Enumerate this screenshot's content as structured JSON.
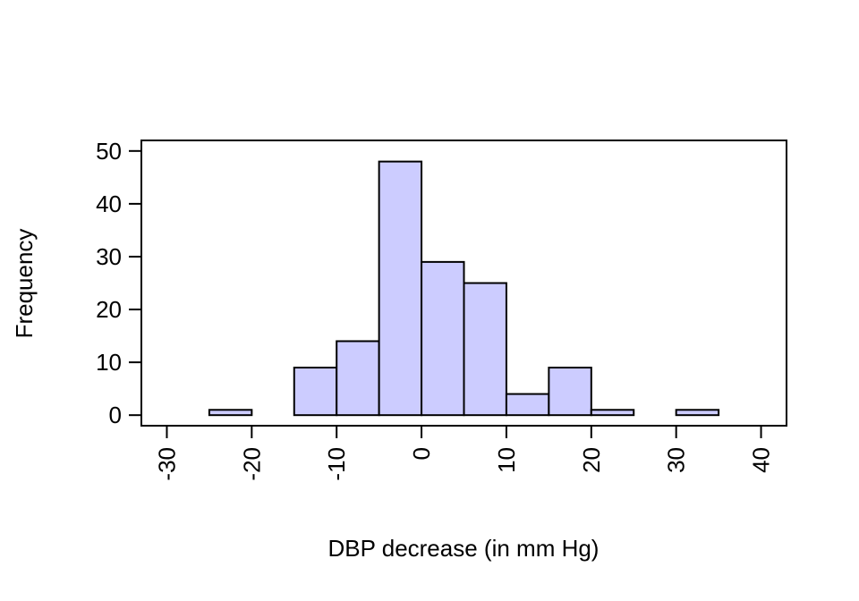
{
  "chart_data": {
    "type": "bar",
    "subtype": "histogram",
    "title": "",
    "xlabel": "DBP decrease (in mm Hg)",
    "ylabel": "Frequency",
    "bins": [
      {
        "from": -25,
        "to": -20,
        "count": 1
      },
      {
        "from": -20,
        "to": -15,
        "count": 0
      },
      {
        "from": -15,
        "to": -10,
        "count": 9
      },
      {
        "from": -10,
        "to": -5,
        "count": 14
      },
      {
        "from": -5,
        "to": 0,
        "count": 48
      },
      {
        "from": 0,
        "to": 5,
        "count": 29
      },
      {
        "from": 5,
        "to": 10,
        "count": 25
      },
      {
        "from": 10,
        "to": 15,
        "count": 4
      },
      {
        "from": 15,
        "to": 20,
        "count": 9
      },
      {
        "from": 20,
        "to": 25,
        "count": 1
      },
      {
        "from": 25,
        "to": 30,
        "count": 0
      },
      {
        "from": 30,
        "to": 35,
        "count": 1
      }
    ],
    "xlim": [
      -33,
      43
    ],
    "ylim": [
      -2,
      52
    ],
    "xticks": [
      -30,
      -20,
      -10,
      0,
      10,
      20,
      30,
      40
    ],
    "xtick_labels": [
      "-30",
      "-20",
      "-10",
      "0",
      "10",
      "20",
      "30",
      "40"
    ],
    "yticks": [
      0,
      10,
      20,
      30,
      40,
      50
    ],
    "ytick_labels": [
      "0",
      "10",
      "20",
      "30",
      "40",
      "50"
    ],
    "bar_color": "#ccccff",
    "edge_color": "#000000",
    "grid": false,
    "legend": "none"
  }
}
